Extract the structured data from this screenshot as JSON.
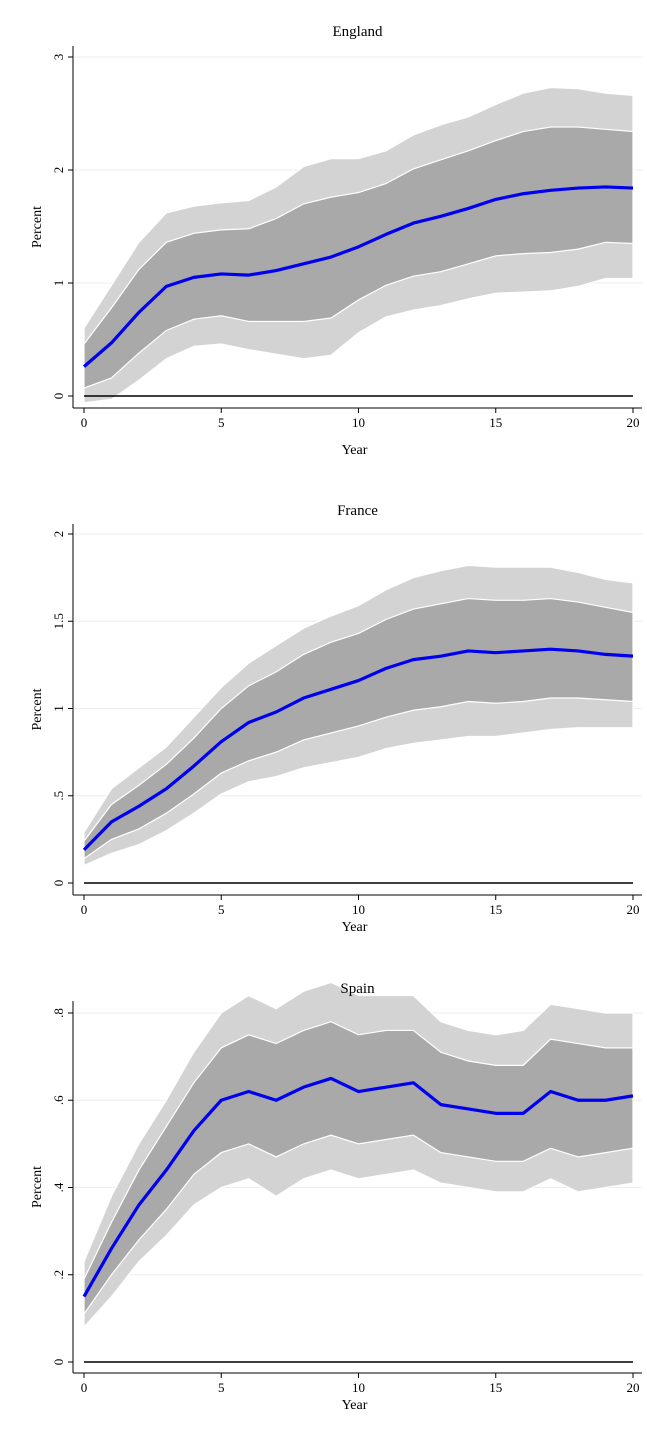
{
  "chart_data": [
    {
      "type": "area",
      "title": "England",
      "xlabel": "Year",
      "ylabel": "Percent",
      "xlim": [
        0,
        20
      ],
      "ylim": [
        0,
        3
      ],
      "xticks": [
        0,
        5,
        10,
        15,
        20
      ],
      "yticks": [
        0,
        1,
        2,
        3
      ],
      "ytick_labels": [
        "0",
        "1",
        "2",
        "3"
      ],
      "grid": true,
      "x": [
        0,
        1,
        2,
        3,
        4,
        5,
        6,
        7,
        8,
        9,
        10,
        11,
        12,
        13,
        14,
        15,
        16,
        17,
        18,
        19,
        20
      ],
      "series": [
        {
          "role": "outer_upper",
          "values": [
            0.6,
            0.98,
            1.36,
            1.62,
            1.68,
            1.71,
            1.73,
            1.85,
            2.03,
            2.1,
            2.1,
            2.17,
            2.31,
            2.4,
            2.47,
            2.58,
            2.68,
            2.73,
            2.72,
            2.68,
            2.66
          ]
        },
        {
          "role": "inner_upper",
          "values": [
            0.46,
            0.78,
            1.12,
            1.36,
            1.44,
            1.47,
            1.48,
            1.57,
            1.7,
            1.76,
            1.8,
            1.88,
            2.01,
            2.09,
            2.17,
            2.26,
            2.34,
            2.38,
            2.38,
            2.36,
            2.34
          ]
        },
        {
          "role": "point_estimate",
          "values": [
            0.26,
            0.47,
            0.74,
            0.97,
            1.05,
            1.08,
            1.07,
            1.11,
            1.17,
            1.23,
            1.32,
            1.43,
            1.53,
            1.59,
            1.66,
            1.74,
            1.79,
            1.82,
            1.84,
            1.85,
            1.84
          ]
        },
        {
          "role": "inner_lower",
          "values": [
            0.07,
            0.16,
            0.38,
            0.58,
            0.68,
            0.71,
            0.66,
            0.66,
            0.66,
            0.69,
            0.85,
            0.98,
            1.06,
            1.1,
            1.17,
            1.24,
            1.26,
            1.27,
            1.3,
            1.36,
            1.35
          ]
        },
        {
          "role": "outer_lower",
          "values": [
            -0.06,
            -0.03,
            0.14,
            0.33,
            0.44,
            0.46,
            0.41,
            0.37,
            0.33,
            0.36,
            0.56,
            0.7,
            0.76,
            0.8,
            0.86,
            0.91,
            0.92,
            0.93,
            0.97,
            1.04,
            1.04
          ]
        }
      ]
    },
    {
      "type": "area",
      "title": "France",
      "xlabel": "Year",
      "ylabel": "Percent",
      "xlim": [
        0,
        20
      ],
      "ylim": [
        0,
        2
      ],
      "xticks": [
        0,
        5,
        10,
        15,
        20
      ],
      "yticks": [
        0,
        0.5,
        1,
        1.5,
        2
      ],
      "ytick_labels": [
        "0",
        ".5",
        "1",
        "1.5",
        "2"
      ],
      "grid": true,
      "x": [
        0,
        1,
        2,
        3,
        4,
        5,
        6,
        7,
        8,
        9,
        10,
        11,
        12,
        13,
        14,
        15,
        16,
        17,
        18,
        19,
        20
      ],
      "series": [
        {
          "role": "outer_upper",
          "values": [
            0.29,
            0.54,
            0.66,
            0.78,
            0.95,
            1.12,
            1.26,
            1.36,
            1.46,
            1.53,
            1.59,
            1.68,
            1.75,
            1.79,
            1.82,
            1.81,
            1.81,
            1.81,
            1.78,
            1.74,
            1.72
          ]
        },
        {
          "role": "inner_upper",
          "values": [
            0.24,
            0.45,
            0.56,
            0.68,
            0.83,
            1.0,
            1.13,
            1.21,
            1.31,
            1.38,
            1.43,
            1.51,
            1.57,
            1.6,
            1.63,
            1.62,
            1.62,
            1.63,
            1.61,
            1.58,
            1.55
          ]
        },
        {
          "role": "point_estimate",
          "values": [
            0.19,
            0.35,
            0.44,
            0.54,
            0.67,
            0.81,
            0.92,
            0.98,
            1.06,
            1.11,
            1.16,
            1.23,
            1.28,
            1.3,
            1.33,
            1.32,
            1.33,
            1.34,
            1.33,
            1.31,
            1.3
          ]
        },
        {
          "role": "inner_lower",
          "values": [
            0.14,
            0.25,
            0.31,
            0.4,
            0.51,
            0.63,
            0.7,
            0.75,
            0.82,
            0.86,
            0.9,
            0.95,
            0.99,
            1.01,
            1.04,
            1.03,
            1.04,
            1.06,
            1.06,
            1.05,
            1.04
          ]
        },
        {
          "role": "outer_lower",
          "values": [
            0.1,
            0.17,
            0.22,
            0.3,
            0.4,
            0.51,
            0.58,
            0.61,
            0.66,
            0.69,
            0.72,
            0.77,
            0.8,
            0.82,
            0.84,
            0.84,
            0.86,
            0.88,
            0.89,
            0.89,
            0.89
          ]
        }
      ]
    },
    {
      "type": "area",
      "title": "Spain",
      "xlabel": "Year",
      "ylabel": "Percent",
      "xlim": [
        0,
        20
      ],
      "ylim": [
        0,
        0.8
      ],
      "xticks": [
        0,
        5,
        10,
        15,
        20
      ],
      "yticks": [
        0,
        0.2,
        0.4,
        0.6,
        0.8
      ],
      "ytick_labels": [
        "0",
        ".2",
        ".4",
        ".6",
        ".8"
      ],
      "grid": true,
      "x": [
        0,
        1,
        2,
        3,
        4,
        5,
        6,
        7,
        8,
        9,
        10,
        11,
        12,
        13,
        14,
        15,
        16,
        17,
        18,
        19,
        20
      ],
      "series": [
        {
          "role": "outer_upper",
          "values": [
            0.23,
            0.38,
            0.5,
            0.6,
            0.71,
            0.8,
            0.84,
            0.81,
            0.85,
            0.87,
            0.84,
            0.84,
            0.84,
            0.78,
            0.76,
            0.75,
            0.76,
            0.82,
            0.81,
            0.8,
            0.8
          ]
        },
        {
          "role": "inner_upper",
          "values": [
            0.19,
            0.32,
            0.44,
            0.54,
            0.64,
            0.72,
            0.75,
            0.73,
            0.76,
            0.78,
            0.75,
            0.76,
            0.76,
            0.71,
            0.69,
            0.68,
            0.68,
            0.74,
            0.73,
            0.72,
            0.72
          ]
        },
        {
          "role": "point_estimate",
          "values": [
            0.15,
            0.26,
            0.36,
            0.44,
            0.53,
            0.6,
            0.62,
            0.6,
            0.63,
            0.65,
            0.62,
            0.63,
            0.64,
            0.59,
            0.58,
            0.57,
            0.57,
            0.62,
            0.6,
            0.6,
            0.61
          ]
        },
        {
          "role": "inner_lower",
          "values": [
            0.11,
            0.2,
            0.28,
            0.35,
            0.43,
            0.48,
            0.5,
            0.47,
            0.5,
            0.52,
            0.5,
            0.51,
            0.52,
            0.48,
            0.47,
            0.46,
            0.46,
            0.49,
            0.47,
            0.48,
            0.49
          ]
        },
        {
          "role": "outer_lower",
          "values": [
            0.08,
            0.15,
            0.23,
            0.29,
            0.36,
            0.4,
            0.42,
            0.38,
            0.42,
            0.44,
            0.42,
            0.43,
            0.44,
            0.41,
            0.4,
            0.39,
            0.39,
            0.42,
            0.39,
            0.4,
            0.41
          ]
        }
      ]
    }
  ],
  "colors": {
    "outer_band": "#d3d3d3",
    "inner_band": "#a9a9a9",
    "point_estimate": "#0000ee",
    "zero_line": "#000000",
    "grid": "#eeeeee"
  }
}
